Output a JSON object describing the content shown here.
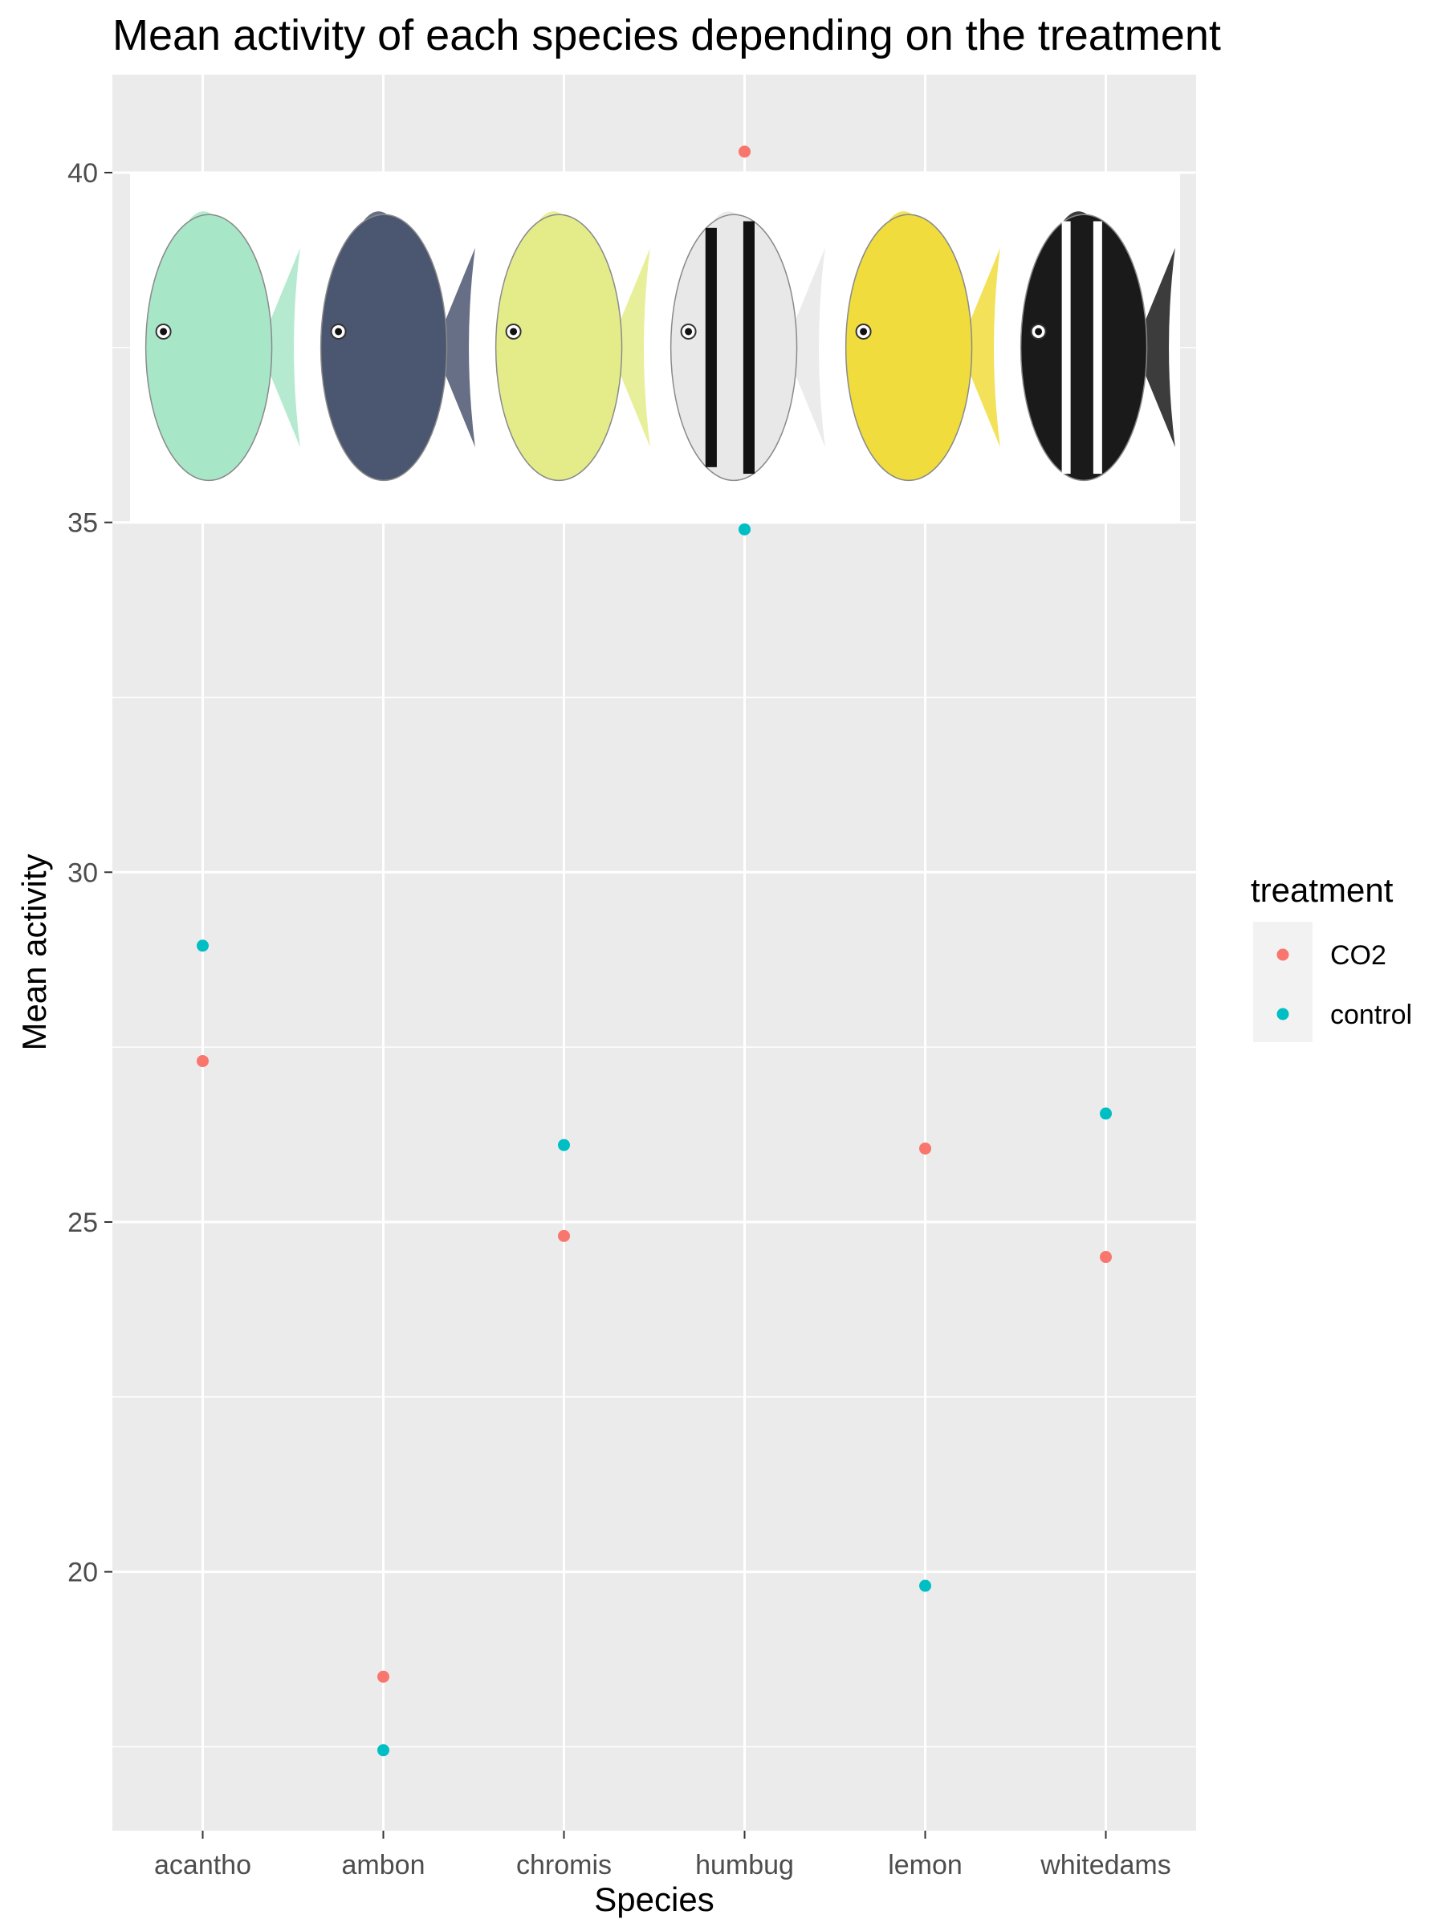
{
  "chart_data": {
    "type": "scatter",
    "title": "Mean activity of each species depending on the treatment",
    "xlabel": "Species",
    "ylabel": "Mean activity",
    "categories": [
      "acantho",
      "ambon",
      "chromis",
      "humbug",
      "lemon",
      "whitedams"
    ],
    "ylim": [
      16.3,
      41.4
    ],
    "yticks": [
      20,
      25,
      30,
      35,
      40
    ],
    "grid": true,
    "legend": {
      "title": "treatment",
      "position": "right"
    },
    "series": [
      {
        "name": "CO2",
        "color": "#F8766D",
        "values": [
          27.3,
          18.5,
          24.8,
          40.3,
          26.05,
          24.5
        ]
      },
      {
        "name": "control",
        "color": "#00BFC4",
        "values": [
          28.95,
          17.45,
          26.1,
          34.9,
          19.8,
          26.55
        ]
      }
    ],
    "inset_image": {
      "description": "fish illustrations",
      "icons": [
        "acantho-fish-icon",
        "ambon-fish-icon",
        "chromis-fish-icon",
        "humbug-fish-icon",
        "lemon-fish-icon",
        "whitedams-fish-icon"
      ],
      "colors": {
        "acantho": "#a8e6c8",
        "ambon": "#4b5670",
        "chromis": "#e4ec8a",
        "humbug": "#e8e8e8",
        "lemon": "#f0dc3c",
        "whitedams": "#1a1a1a"
      }
    }
  }
}
